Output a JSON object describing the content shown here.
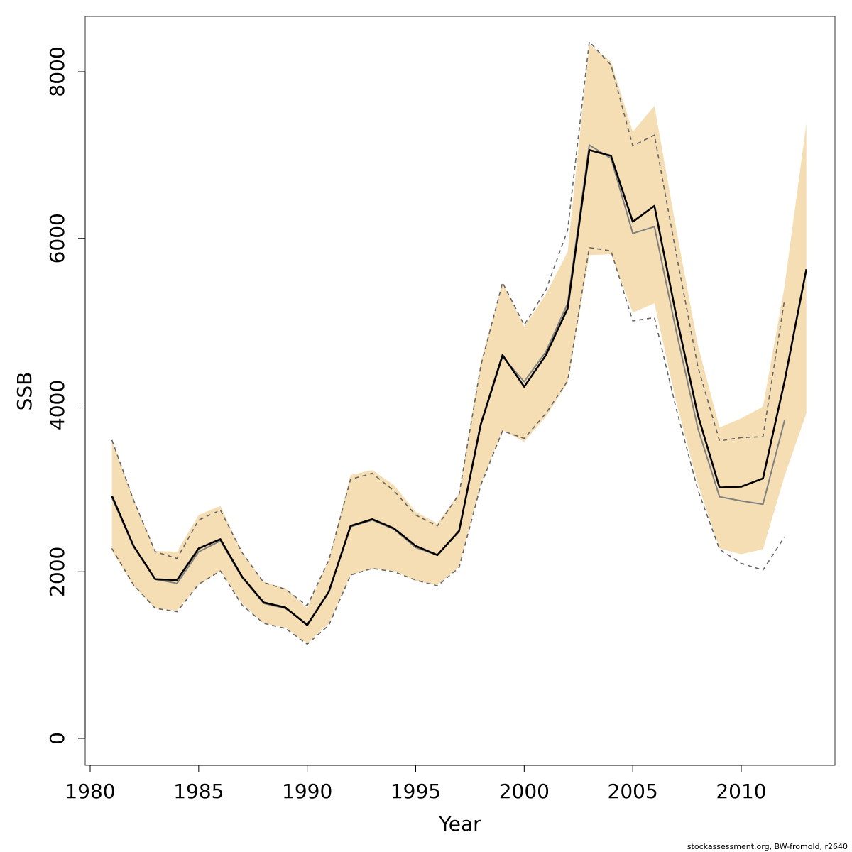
{
  "chart_data": {
    "type": "line",
    "title": "",
    "xlabel": "Year",
    "ylabel": "SSB",
    "xlim": [
      1980,
      2014
    ],
    "ylim": [
      -300,
      8600
    ],
    "x_ticks": [
      1980,
      1985,
      1990,
      1995,
      2000,
      2005,
      2010
    ],
    "x_tick_labels": [
      "1980",
      "1985",
      "1990",
      "1995",
      "2000",
      "2005",
      "2010"
    ],
    "y_ticks": [
      0,
      2000,
      4000,
      6000,
      8000
    ],
    "y_tick_labels": [
      "0",
      "2000",
      "4000",
      "6000",
      "8000"
    ],
    "grid": false,
    "legend": "none",
    "colors": {
      "band": "#f5deb3",
      "estimate": "#000000",
      "previous": "#808080",
      "previous_ci": "#666666",
      "frame": "#333333"
    },
    "series": [
      {
        "role": "confidence_band",
        "x": [
          1981,
          1982,
          1983,
          1984,
          1985,
          1986,
          1987,
          1988,
          1989,
          1990,
          1991,
          1992,
          1993,
          1994,
          1995,
          1996,
          1997,
          1998,
          1999,
          2000,
          2001,
          2002,
          2003,
          2004,
          2005,
          2006,
          2007,
          2008,
          2009,
          2010,
          2011,
          2012,
          2013
        ],
        "upper": [
          3580,
          2870,
          2250,
          2240,
          2680,
          2790,
          2230,
          1880,
          1800,
          1560,
          2150,
          3160,
          3220,
          3040,
          2720,
          2580,
          2940,
          4520,
          5470,
          4940,
          5330,
          5840,
          8330,
          8120,
          7280,
          7590,
          6120,
          4720,
          3730,
          3840,
          3980,
          5430,
          7380
        ],
        "lower": [
          2250,
          1830,
          1560,
          1530,
          1840,
          2010,
          1620,
          1380,
          1330,
          1140,
          1380,
          1960,
          2040,
          2010,
          1890,
          1840,
          2060,
          3050,
          3700,
          3560,
          3860,
          4270,
          5800,
          5810,
          5110,
          5220,
          4040,
          3050,
          2280,
          2210,
          2270,
          3150,
          3900
        ]
      },
      {
        "role": "estimate",
        "x": [
          1981,
          1982,
          1983,
          1984,
          1985,
          1986,
          1987,
          1988,
          1989,
          1990,
          1991,
          1992,
          1993,
          1994,
          1995,
          1996,
          1997,
          1998,
          1999,
          2000,
          2001,
          2002,
          2003,
          2004,
          2005,
          2006,
          2007,
          2008,
          2009,
          2010,
          2011,
          2012,
          2013
        ],
        "values": [
          2910,
          2310,
          1910,
          1900,
          2280,
          2390,
          1940,
          1630,
          1570,
          1360,
          1760,
          2550,
          2630,
          2520,
          2310,
          2200,
          2490,
          3770,
          4600,
          4220,
          4600,
          5160,
          7060,
          6990,
          6200,
          6390,
          5080,
          3880,
          3010,
          3020,
          3120,
          4290,
          5630
        ]
      },
      {
        "role": "previous_estimate",
        "x": [
          1981,
          1982,
          1983,
          1984,
          1985,
          1986,
          1987,
          1988,
          1989,
          1990,
          1991,
          1992,
          1993,
          1994,
          1995,
          1996,
          1997,
          1998,
          1999,
          2000,
          2001,
          2002,
          2003,
          2004,
          2005,
          2006,
          2007,
          2008,
          2009,
          2010,
          2011,
          2012
        ],
        "values": [
          2890,
          2300,
          1910,
          1860,
          2240,
          2370,
          1930,
          1620,
          1560,
          1370,
          1760,
          2540,
          2620,
          2510,
          2290,
          2200,
          2480,
          3760,
          4580,
          4280,
          4640,
          5220,
          7120,
          6960,
          6060,
          6140,
          4890,
          3720,
          2900,
          2850,
          2810,
          3820
        ]
      },
      {
        "role": "previous_upper",
        "x": [
          1981,
          1982,
          1983,
          1984,
          1985,
          1986,
          1987,
          1988,
          1989,
          1990,
          1991,
          1992,
          1993,
          1994,
          1995,
          1996,
          1997,
          1998,
          1999,
          2000,
          2001,
          2002,
          2003,
          2004,
          2005,
          2006,
          2007,
          2008,
          2009,
          2010,
          2011,
          2012
        ],
        "values": [
          3580,
          2860,
          2240,
          2160,
          2620,
          2740,
          2230,
          1870,
          1790,
          1590,
          2140,
          3110,
          3180,
          2970,
          2680,
          2550,
          2930,
          4470,
          5470,
          4960,
          5380,
          6100,
          8360,
          8080,
          7110,
          7240,
          5820,
          4460,
          3570,
          3610,
          3620,
          5270
        ]
      },
      {
        "role": "previous_lower",
        "x": [
          1981,
          1982,
          1983,
          1984,
          1985,
          1986,
          1987,
          1988,
          1989,
          1990,
          1991,
          1992,
          1993,
          1994,
          1995,
          1996,
          1997,
          1998,
          1999,
          2000,
          2001,
          2002,
          2003,
          2004,
          2005,
          2006,
          2007,
          2008,
          2009,
          2010,
          2011,
          2012
        ],
        "values": [
          2280,
          1840,
          1560,
          1520,
          1850,
          2010,
          1600,
          1380,
          1320,
          1130,
          1360,
          1960,
          2040,
          2000,
          1900,
          1830,
          2050,
          3040,
          3690,
          3600,
          3900,
          4290,
          5890,
          5850,
          5010,
          5050,
          3960,
          2980,
          2270,
          2100,
          2020,
          2420
        ]
      }
    ]
  },
  "footer": "stockassessment.org, BW-fromold, r2640"
}
